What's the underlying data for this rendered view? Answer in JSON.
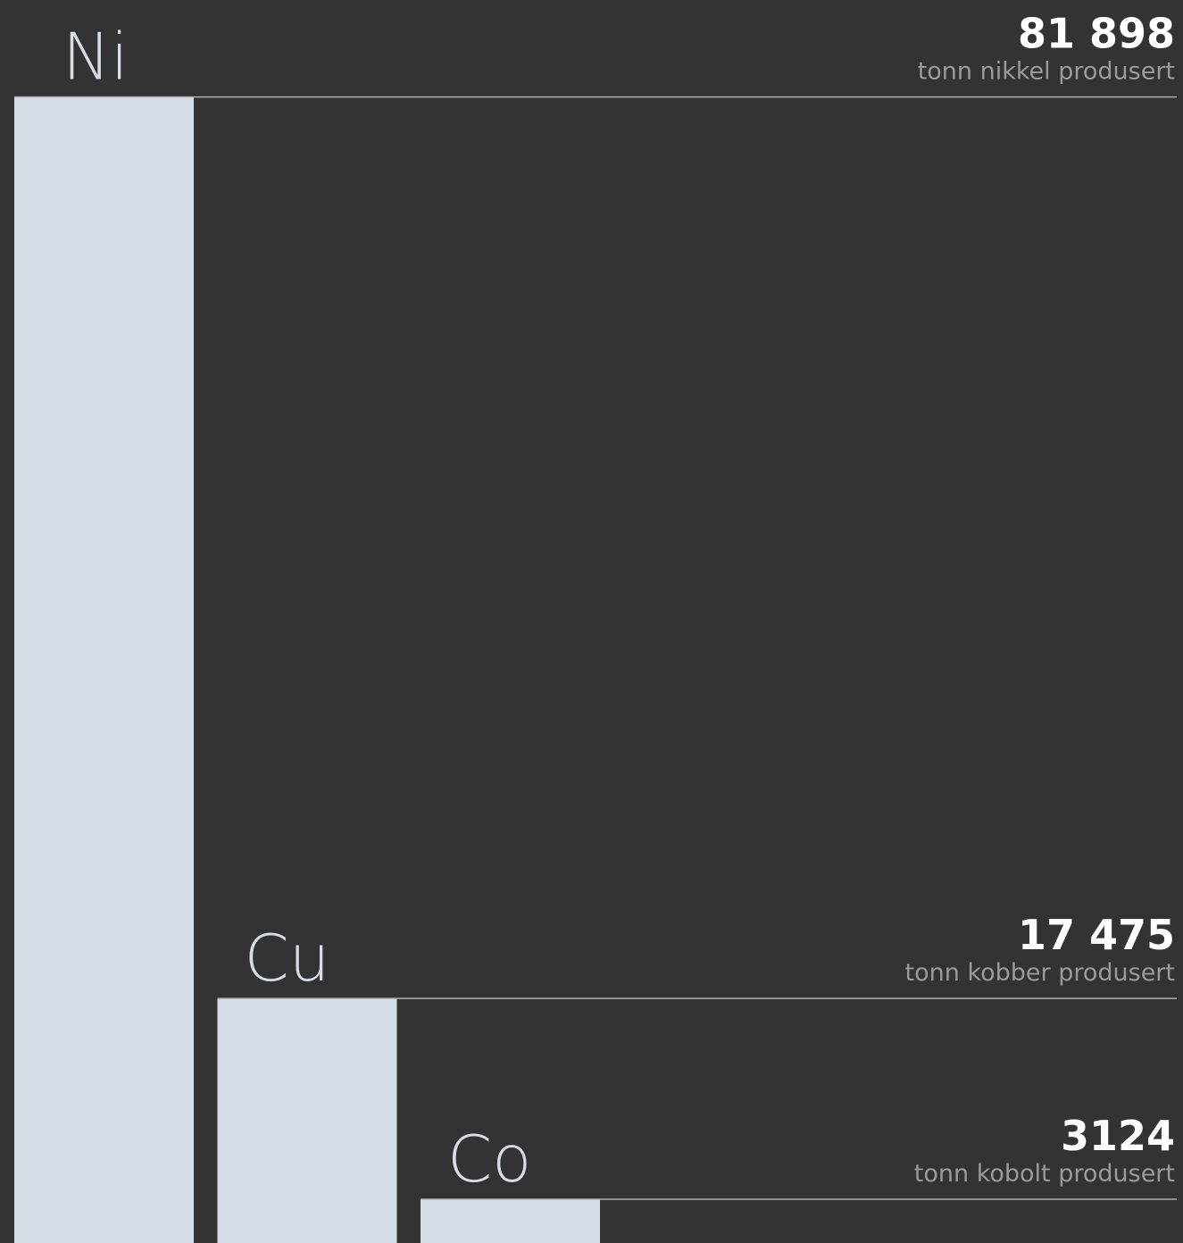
{
  "chart_data": {
    "type": "bar",
    "categories": [
      "Ni",
      "Cu",
      "Co"
    ],
    "values": [
      81898,
      17475,
      3124
    ],
    "value_labels": [
      "81 898",
      "17 475",
      "3124"
    ],
    "descriptions": [
      "tonn nikkel produsert",
      "tonn kobber produsert",
      "tonn kobolt produsert"
    ],
    "color": "#d6dde6",
    "ylim": [
      0,
      82000
    ]
  }
}
